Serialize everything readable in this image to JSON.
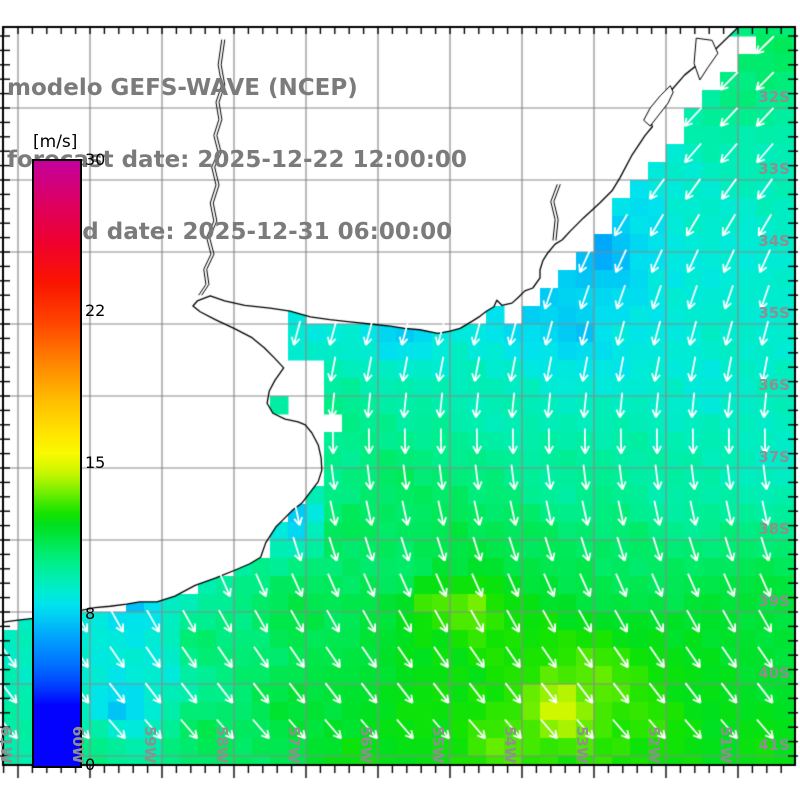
{
  "title": {
    "line1": "modelo GEFS-WAVE (NCEP)",
    "line2": "forecast date: 2025-12-22 12:00:00",
    "line3": "valid date: 2025-12-31 06:00:00"
  },
  "colorbar": {
    "unit": "[m/s]",
    "min": 0,
    "max": 30,
    "tick_labels": [
      "30",
      "22",
      "15",
      "8",
      "0"
    ],
    "stops": [
      [
        0,
        "#0202FE"
      ],
      [
        3,
        "#0202FE"
      ],
      [
        4,
        "#0040FF"
      ],
      [
        5,
        "#0070FF"
      ],
      [
        6,
        "#0094FF"
      ],
      [
        7,
        "#00BCF8"
      ],
      [
        7.5,
        "#00D2F2"
      ],
      [
        8,
        "#00E2EE"
      ],
      [
        8.5,
        "#00EBD8"
      ],
      [
        9,
        "#00EDC0"
      ],
      [
        9.5,
        "#00EEA8"
      ],
      [
        10,
        "#00EE8E"
      ],
      [
        10.5,
        "#00EC72"
      ],
      [
        11,
        "#00E854"
      ],
      [
        11.5,
        "#00E436"
      ],
      [
        12,
        "#00E01C"
      ],
      [
        12.5,
        "#14E400"
      ],
      [
        13,
        "#3CE800"
      ],
      [
        13.5,
        "#6EEE00"
      ],
      [
        14,
        "#9CF200"
      ],
      [
        14.5,
        "#C4F600"
      ],
      [
        15,
        "#E2F800"
      ],
      [
        15.5,
        "#F8FA00"
      ],
      [
        16.5,
        "#FFE400"
      ],
      [
        18,
        "#FFC000"
      ],
      [
        20,
        "#FF8400"
      ],
      [
        22,
        "#FF4400"
      ],
      [
        24,
        "#FA1400"
      ],
      [
        26,
        "#EE0030"
      ],
      [
        28,
        "#DC0064"
      ],
      [
        30,
        "#C4009C"
      ]
    ]
  },
  "axes": {
    "grid_color": "#8a8a8a",
    "lon_labels": [
      {
        "text": "61W",
        "lon": -61
      },
      {
        "text": "60W",
        "lon": -60
      },
      {
        "text": "59W",
        "lon": -59
      },
      {
        "text": "58W",
        "lon": -58
      },
      {
        "text": "57W",
        "lon": -57
      },
      {
        "text": "56W",
        "lon": -56
      },
      {
        "text": "55W",
        "lon": -55
      },
      {
        "text": "54W",
        "lon": -54
      },
      {
        "text": "53W",
        "lon": -53
      },
      {
        "text": "52W",
        "lon": -52
      },
      {
        "text": "51W",
        "lon": -51
      }
    ],
    "lat_labels": [
      {
        "text": "32S",
        "lat": -32
      },
      {
        "text": "33S",
        "lat": -33
      },
      {
        "text": "34S",
        "lat": -34
      },
      {
        "text": "35S",
        "lat": -35
      },
      {
        "text": "36S",
        "lat": -36
      },
      {
        "text": "37S",
        "lat": -37
      },
      {
        "text": "38S",
        "lat": -38
      },
      {
        "text": "39S",
        "lat": -39
      },
      {
        "text": "40S",
        "lat": -40
      },
      {
        "text": "41S",
        "lat": -41
      }
    ]
  },
  "chart_data": {
    "type": "heatmap",
    "field": "10m wind speed with wind direction vectors",
    "units": "m/s",
    "lon_range": [
      -61.21,
      -50.21
    ],
    "lat_range": [
      -41.13,
      -30.88
    ],
    "cell_size_deg": 0.25,
    "arrow_grid_deg": 0.5,
    "arrow_color": "#ffffff",
    "wind_speed_points": [
      [
        -50.55,
        -31.3,
        10.8
      ],
      [
        -50.95,
        -31.9,
        10.2
      ],
      [
        -52.1,
        -31.45,
        10.0
      ],
      [
        -50.55,
        -32.7,
        9.2
      ],
      [
        -52.6,
        -32.3,
        8.8
      ],
      [
        -51.5,
        -33.4,
        8.8
      ],
      [
        -52.35,
        -33.4,
        8.0
      ],
      [
        -53.45,
        -33.55,
        7.6
      ],
      [
        -50.55,
        -34.8,
        8.6
      ],
      [
        -52.9,
        -33.95,
        6.4
      ],
      [
        -53.65,
        -34.15,
        6.6
      ],
      [
        -53.9,
        -34.9,
        7.6
      ],
      [
        -52.65,
        -35.2,
        8.2
      ],
      [
        -51.5,
        -35.9,
        8.5
      ],
      [
        -50.55,
        -36.9,
        8.8
      ],
      [
        -51.0,
        -34.0,
        8.5
      ],
      [
        -56.95,
        -34.8,
        8.4
      ],
      [
        -55.7,
        -35.05,
        7.4
      ],
      [
        -53.25,
        -35.1,
        7.2
      ],
      [
        -58.05,
        -34.75,
        8.2
      ],
      [
        -58.1,
        -34.9,
        6.9
      ],
      [
        -56.4,
        -36.2,
        10.0
      ],
      [
        -54.3,
        -36.2,
        9.2
      ],
      [
        -57.1,
        -36.9,
        10.5
      ],
      [
        -55.7,
        -37.3,
        10.8
      ],
      [
        -53.6,
        -37.3,
        9.6
      ],
      [
        -51.8,
        -37.3,
        9.4
      ],
      [
        -56.55,
        -37.85,
        11.2
      ],
      [
        -57.1,
        -37.7,
        7.0
      ],
      [
        -59.45,
        -38.85,
        7.0
      ],
      [
        -55.55,
        -38.45,
        10.4
      ],
      [
        -55.0,
        -38.2,
        11.2
      ],
      [
        -54.0,
        -37.9,
        11.0
      ],
      [
        -52.65,
        -38.4,
        10.8
      ],
      [
        -59.5,
        -39.15,
        8.2
      ],
      [
        -59.0,
        -39.75,
        8.3
      ],
      [
        -60.4,
        -39.6,
        8.8
      ],
      [
        -59.6,
        -40.35,
        7.2
      ],
      [
        -61.05,
        -40.6,
        9.5
      ],
      [
        -59.9,
        -40.9,
        10.4
      ],
      [
        -58.5,
        -39.5,
        10.8
      ],
      [
        -57.1,
        -38.95,
        11.4
      ],
      [
        -55.3,
        -38.8,
        13.3
      ],
      [
        -54.7,
        -38.95,
        13.6
      ],
      [
        -54.0,
        -39.5,
        12.6
      ],
      [
        -53.45,
        -40.35,
        14.9
      ],
      [
        -52.9,
        -39.9,
        13.4
      ],
      [
        -52.35,
        -40.35,
        12.8
      ],
      [
        -51.5,
        -39.65,
        12.0
      ],
      [
        -50.7,
        -38.95,
        11.6
      ],
      [
        -50.7,
        -40.9,
        12.2
      ],
      [
        -54.3,
        -40.9,
        13.2
      ],
      [
        -55.45,
        -40.35,
        12.4
      ],
      [
        -57.1,
        -40.35,
        11.6
      ],
      [
        -58.45,
        -40.75,
        11.0
      ],
      [
        -56.25,
        -41.15,
        12.4
      ],
      [
        -53.45,
        -41.15,
        12.6
      ]
    ],
    "arrow_directions_by_lat": [
      [
        -31,
        -46
      ],
      [
        -32.5,
        -42
      ],
      [
        -33.5,
        -32
      ],
      [
        -34.5,
        -20
      ],
      [
        -35.5,
        -12
      ],
      [
        -36.3,
        -4
      ],
      [
        -37,
        6
      ],
      [
        -38,
        16
      ],
      [
        -38.8,
        26
      ],
      [
        -39.6,
        34
      ],
      [
        -40.5,
        40
      ],
      [
        -41.3,
        45
      ]
    ]
  },
  "geography": {
    "coastline": [
      [
        -51.0,
        -30.88
      ],
      [
        -51.39,
        -31.26
      ],
      [
        -51.74,
        -31.54
      ],
      [
        -52.01,
        -31.85
      ],
      [
        -52.22,
        -32.14
      ],
      [
        -52.19,
        -32.26
      ],
      [
        -52.29,
        -32.38
      ],
      [
        -52.47,
        -32.65
      ],
      [
        -52.64,
        -32.97
      ],
      [
        -52.75,
        -33.15
      ],
      [
        -52.92,
        -33.32
      ],
      [
        -53.15,
        -33.53
      ],
      [
        -53.33,
        -33.71
      ],
      [
        -53.44,
        -33.83
      ],
      [
        -53.54,
        -33.89
      ],
      [
        -53.64,
        -34.01
      ],
      [
        -53.71,
        -34.12
      ],
      [
        -53.75,
        -34.25
      ],
      [
        -53.75,
        -34.36
      ],
      [
        -53.85,
        -34.5
      ],
      [
        -53.96,
        -34.54
      ],
      [
        -54.06,
        -34.64
      ],
      [
        -54.14,
        -34.71
      ],
      [
        -54.28,
        -34.74
      ],
      [
        -54.35,
        -34.67
      ],
      [
        -54.39,
        -34.76
      ],
      [
        -54.49,
        -34.82
      ],
      [
        -54.58,
        -34.89
      ],
      [
        -54.69,
        -34.96
      ],
      [
        -54.86,
        -35.06
      ],
      [
        -55.0,
        -35.1
      ],
      [
        -55.17,
        -35.13
      ],
      [
        -55.42,
        -35.08
      ],
      [
        -55.63,
        -35.06
      ],
      [
        -55.83,
        -35.03
      ],
      [
        -56.11,
        -35.0
      ],
      [
        -56.39,
        -34.97
      ],
      [
        -56.67,
        -34.94
      ],
      [
        -56.94,
        -34.9
      ],
      [
        -57.22,
        -34.82
      ],
      [
        -57.5,
        -34.78
      ],
      [
        -57.85,
        -34.74
      ],
      [
        -58.13,
        -34.68
      ],
      [
        -58.33,
        -34.61
      ],
      [
        -58.51,
        -34.68
      ],
      [
        -58.57,
        -34.75
      ],
      [
        -58.47,
        -34.83
      ],
      [
        -58.26,
        -34.94
      ],
      [
        -58.0,
        -35.06
      ],
      [
        -57.75,
        -35.19
      ],
      [
        -57.58,
        -35.33
      ],
      [
        -57.44,
        -35.47
      ],
      [
        -57.31,
        -35.61
      ],
      [
        -57.43,
        -35.78
      ],
      [
        -57.51,
        -35.93
      ],
      [
        -57.54,
        -36.1
      ],
      [
        -57.46,
        -36.24
      ],
      [
        -57.29,
        -36.32
      ],
      [
        -57.11,
        -36.36
      ],
      [
        -57.01,
        -36.4
      ],
      [
        -56.92,
        -36.51
      ],
      [
        -56.83,
        -36.68
      ],
      [
        -56.79,
        -36.86
      ],
      [
        -56.78,
        -37.03
      ],
      [
        -56.83,
        -37.19
      ],
      [
        -56.93,
        -37.32
      ],
      [
        -57.06,
        -37.49
      ],
      [
        -57.18,
        -37.58
      ],
      [
        -57.32,
        -37.72
      ],
      [
        -57.42,
        -37.82
      ],
      [
        -57.56,
        -38.04
      ],
      [
        -57.63,
        -38.24
      ],
      [
        -57.78,
        -38.33
      ],
      [
        -57.99,
        -38.42
      ],
      [
        -58.26,
        -38.53
      ],
      [
        -58.54,
        -38.63
      ],
      [
        -58.82,
        -38.78
      ],
      [
        -59.07,
        -38.86
      ],
      [
        -59.31,
        -38.86
      ],
      [
        -59.49,
        -38.89
      ],
      [
        -59.72,
        -38.92
      ],
      [
        -59.93,
        -38.94
      ],
      [
        -60.28,
        -39.01
      ],
      [
        -60.63,
        -39.07
      ],
      [
        -60.97,
        -39.11
      ],
      [
        -61.21,
        -39.14
      ]
    ],
    "rivers": [
      [
        [
          -58.17,
          -31.05
        ],
        [
          -58.22,
          -31.4
        ],
        [
          -58.17,
          -31.68
        ],
        [
          -58.25,
          -31.92
        ],
        [
          -58.21,
          -32.16
        ],
        [
          -58.28,
          -32.38
        ],
        [
          -58.22,
          -32.62
        ],
        [
          -58.31,
          -32.82
        ],
        [
          -58.25,
          -33.07
        ],
        [
          -58.33,
          -33.32
        ],
        [
          -58.28,
          -33.57
        ],
        [
          -58.38,
          -33.8
        ],
        [
          -58.32,
          -34.03
        ],
        [
          -58.42,
          -34.24
        ],
        [
          -58.39,
          -34.45
        ],
        [
          -58.49,
          -34.6
        ]
      ],
      [
        [
          -53.51,
          -33.06
        ],
        [
          -53.6,
          -33.3
        ],
        [
          -53.54,
          -33.55
        ],
        [
          -53.57,
          -33.84
        ]
      ]
    ],
    "lagoons": [
      [
        [
          -51.58,
          -31.03
        ],
        [
          -51.36,
          -31.06
        ],
        [
          -51.28,
          -31.24
        ],
        [
          -51.42,
          -31.44
        ],
        [
          -51.53,
          -31.61
        ],
        [
          -51.61,
          -31.38
        ]
      ],
      [
        [
          -51.94,
          -31.69
        ],
        [
          -52.08,
          -31.83
        ],
        [
          -52.22,
          -32.0
        ],
        [
          -52.31,
          -32.17
        ],
        [
          -52.22,
          -32.25
        ],
        [
          -52.11,
          -32.11
        ],
        [
          -51.97,
          -31.93
        ],
        [
          -51.9,
          -31.78
        ]
      ]
    ],
    "no_data_mask": [
      [
        [
          -50.85,
          -30.88
        ],
        [
          -51.35,
          -31.3
        ],
        [
          -52.05,
          -31.9
        ],
        [
          -52.4,
          -32.5
        ],
        [
          -53.0,
          -33.2
        ],
        [
          -53.55,
          -33.9
        ],
        [
          -53.95,
          -34.4
        ],
        [
          -54.35,
          -34.75
        ],
        [
          -54.35,
          -35.05
        ],
        [
          -53.9,
          -34.8
        ],
        [
          -53.35,
          -34.2
        ],
        [
          -52.75,
          -33.5
        ],
        [
          -52.2,
          -32.85
        ],
        [
          -51.7,
          -32.2
        ],
        [
          -51.15,
          -31.55
        ],
        [
          -50.7,
          -31.1
        ]
      ],
      [
        [
          -58.6,
          -34.5
        ],
        [
          -57.2,
          -34.72
        ],
        [
          -57.15,
          -35.3
        ],
        [
          -58.6,
          -35.1
        ]
      ],
      [
        [
          -57.4,
          -35.35
        ],
        [
          -56.9,
          -35.45
        ],
        [
          -56.6,
          -36.35
        ],
        [
          -56.65,
          -36.75
        ],
        [
          -57.15,
          -36.5
        ],
        [
          -57.45,
          -35.9
        ]
      ]
    ],
    "land_color": "#ffffff",
    "coast_color": "#000000"
  }
}
